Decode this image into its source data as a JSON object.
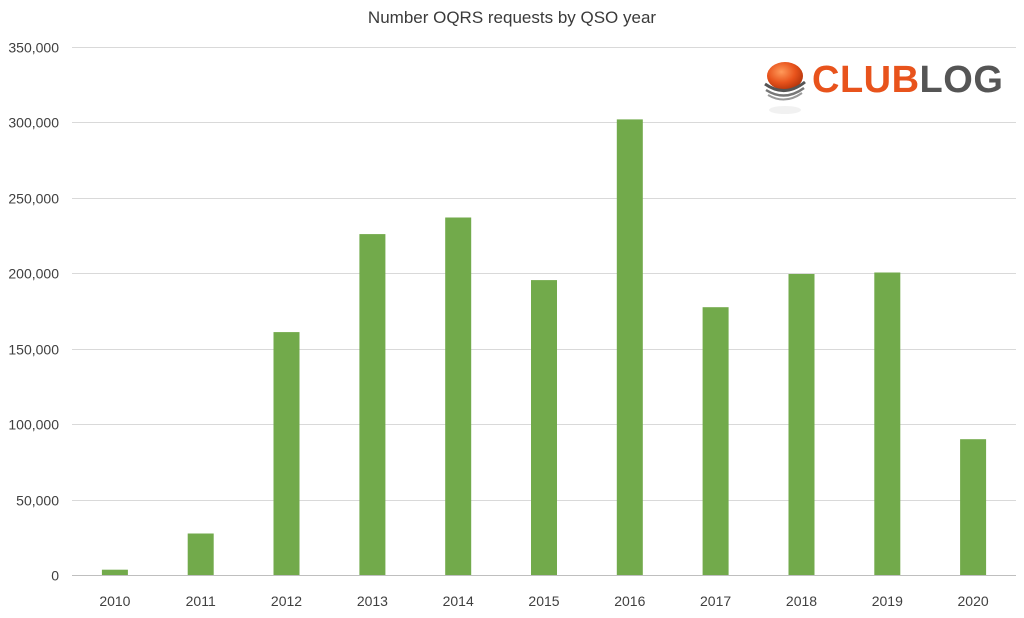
{
  "chart_data": {
    "type": "bar",
    "title": "Number OQRS requests by QSO year",
    "xlabel": "",
    "ylabel": "",
    "categories": [
      "2010",
      "2011",
      "2012",
      "2013",
      "2014",
      "2015",
      "2016",
      "2017",
      "2018",
      "2019",
      "2020"
    ],
    "values": [
      3500,
      27500,
      161000,
      226000,
      237000,
      195500,
      302000,
      177500,
      199500,
      200500,
      90000
    ],
    "ylim": [
      0,
      350000
    ],
    "yticks": [
      0,
      50000,
      100000,
      150000,
      200000,
      250000,
      300000,
      350000
    ],
    "ytick_labels": [
      "0",
      "50,000",
      "100,000",
      "150,000",
      "200,000",
      "250,000",
      "300,000",
      "350,000"
    ],
    "grid": "horizontal",
    "bar_color": "#72aa4b",
    "gridline_color": "#d9d9d9"
  },
  "logo": {
    "text_part1": "CLUB",
    "text_part2": "LOG",
    "color_part1": "#e8531c",
    "color_part2": "#555555"
  }
}
